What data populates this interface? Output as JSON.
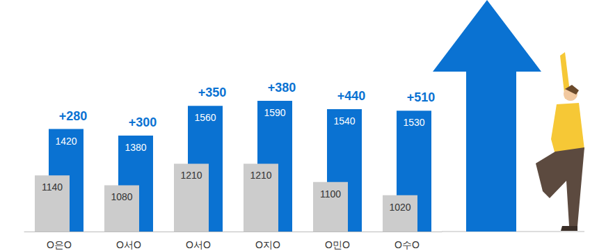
{
  "chart_data": {
    "type": "bar",
    "categories": [
      "O은O",
      "O서O",
      "O서O",
      "O지O",
      "O민O",
      "O수O"
    ],
    "series": [
      {
        "color": "#cccccc",
        "values": [
          1140,
          1080,
          1210,
          1210,
          1100,
          1020
        ]
      },
      {
        "color": "#0a72d2",
        "values": [
          1420,
          1380,
          1560,
          1590,
          1540,
          1530
        ],
        "annotations": [
          "+280",
          "+300",
          "+350",
          "+380",
          "+440",
          "+510"
        ]
      }
    ],
    "ylim": [
      800,
      2200
    ],
    "yticks": [
      800,
      1500,
      2200
    ],
    "grid": false,
    "data_labels": true,
    "tick_labels": "x"
  }
}
